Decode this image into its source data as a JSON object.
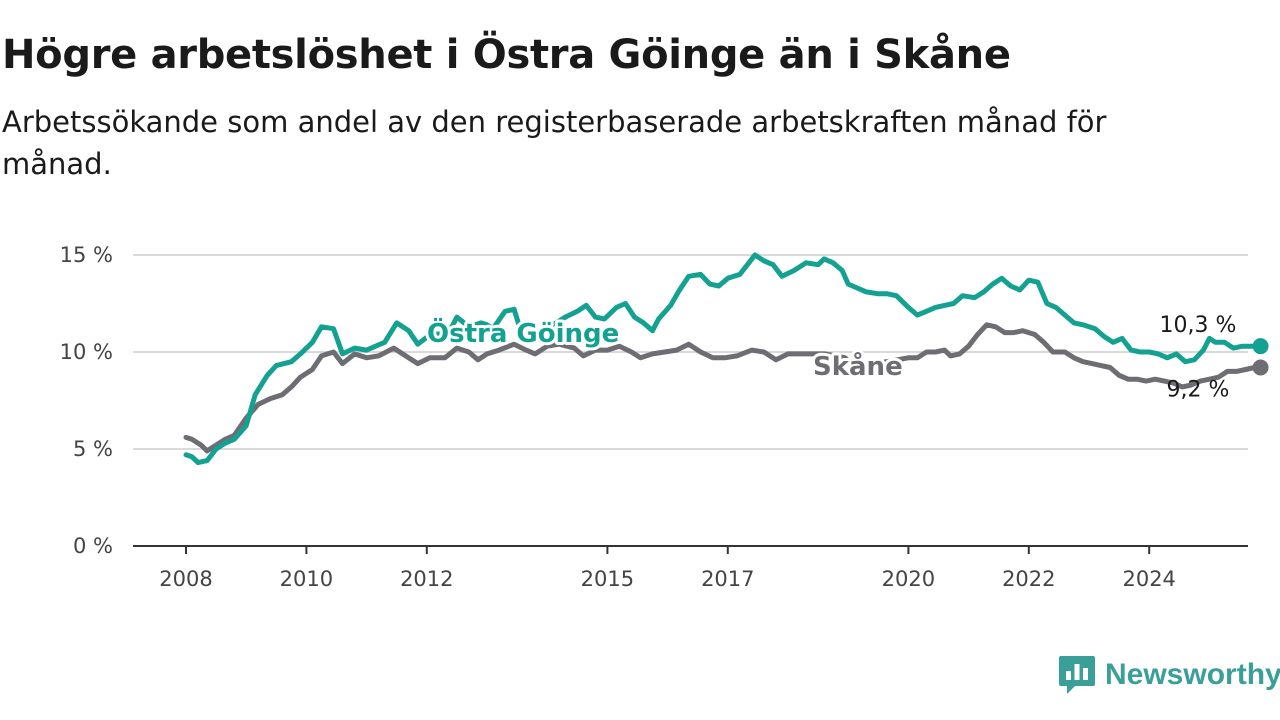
{
  "header": {
    "title": "Högre arbetslöshet i Östra Göinge än i Skåne",
    "subtitle": "Arbetssökande som andel av den registerbaserade arbetskraften månad för månad."
  },
  "brand": {
    "name": "Newsworthy",
    "logo_icon": "bar-chart-speech-bubble-icon"
  },
  "colors": {
    "ostra_goinge": "#13a191",
    "skane": "#6e6d73",
    "grid": "#d9d9d9",
    "axis": "#333333",
    "brand": "#3a9f98"
  },
  "chart_data": {
    "type": "line",
    "x_unit": "year",
    "xlim": [
      2008,
      2024.9
    ],
    "ylim": [
      0,
      15
    ],
    "y_ticks": [
      0,
      5,
      10,
      15
    ],
    "y_tick_labels": [
      "0 %",
      "5 %",
      "10 %",
      "15 %"
    ],
    "x_ticks": [
      2008,
      2010,
      2012,
      2015,
      2017,
      2020,
      2022,
      2024
    ],
    "x_tick_labels": [
      "2008",
      "2010",
      "2012",
      "2015",
      "2017",
      "2020",
      "2022",
      "2024"
    ],
    "grid": true,
    "series": [
      {
        "name": "Östra Göinge",
        "label": "Östra Göinge",
        "end_label": "10,3 %",
        "color": "#13a191",
        "points": [
          [
            2008.0,
            4.7
          ],
          [
            2008.1,
            4.6
          ],
          [
            2008.2,
            4.3
          ],
          [
            2008.35,
            4.4
          ],
          [
            2008.5,
            5.0
          ],
          [
            2008.65,
            5.3
          ],
          [
            2008.8,
            5.5
          ],
          [
            2009.0,
            6.2
          ],
          [
            2009.15,
            7.8
          ],
          [
            2009.35,
            8.8
          ],
          [
            2009.5,
            9.3
          ],
          [
            2009.75,
            9.5
          ],
          [
            2009.9,
            9.9
          ],
          [
            2010.1,
            10.5
          ],
          [
            2010.25,
            11.3
          ],
          [
            2010.45,
            11.2
          ],
          [
            2010.6,
            9.9
          ],
          [
            2010.8,
            10.2
          ],
          [
            2011.0,
            10.1
          ],
          [
            2011.3,
            10.5
          ],
          [
            2011.5,
            11.5
          ],
          [
            2011.7,
            11.1
          ],
          [
            2011.85,
            10.4
          ],
          [
            2012.1,
            11.0
          ],
          [
            2012.2,
            10.9
          ],
          [
            2012.4,
            11.2
          ],
          [
            2012.5,
            11.8
          ],
          [
            2012.7,
            11.3
          ],
          [
            2012.9,
            11.5
          ],
          [
            2013.0,
            11.4
          ],
          [
            2013.1,
            11.2
          ],
          [
            2013.3,
            12.1
          ],
          [
            2013.45,
            12.2
          ],
          [
            2013.55,
            11.2
          ],
          [
            2013.7,
            10.9
          ],
          [
            2013.85,
            10.8
          ],
          [
            2014.0,
            11.3
          ],
          [
            2014.15,
            11.5
          ],
          [
            2014.3,
            11.8
          ],
          [
            2014.5,
            12.1
          ],
          [
            2014.65,
            12.4
          ],
          [
            2014.8,
            11.8
          ],
          [
            2014.95,
            11.7
          ],
          [
            2015.15,
            12.3
          ],
          [
            2015.3,
            12.5
          ],
          [
            2015.45,
            11.8
          ],
          [
            2015.6,
            11.5
          ],
          [
            2015.75,
            11.1
          ],
          [
            2015.85,
            11.7
          ],
          [
            2016.05,
            12.4
          ],
          [
            2016.2,
            13.2
          ],
          [
            2016.35,
            13.9
          ],
          [
            2016.55,
            14.0
          ],
          [
            2016.7,
            13.5
          ],
          [
            2016.85,
            13.4
          ],
          [
            2017.0,
            13.8
          ],
          [
            2017.2,
            14.0
          ],
          [
            2017.35,
            14.6
          ],
          [
            2017.45,
            15.0
          ],
          [
            2017.6,
            14.7
          ],
          [
            2017.75,
            14.5
          ],
          [
            2017.9,
            13.9
          ],
          [
            2018.1,
            14.2
          ],
          [
            2018.3,
            14.6
          ],
          [
            2018.5,
            14.5
          ],
          [
            2018.6,
            14.8
          ],
          [
            2018.75,
            14.6
          ],
          [
            2018.9,
            14.2
          ],
          [
            2019.0,
            13.5
          ],
          [
            2019.15,
            13.3
          ],
          [
            2019.3,
            13.1
          ],
          [
            2019.5,
            13.0
          ],
          [
            2019.65,
            13.0
          ],
          [
            2019.8,
            12.9
          ],
          [
            2020.0,
            12.3
          ],
          [
            2020.15,
            11.9
          ],
          [
            2020.3,
            12.1
          ],
          [
            2020.45,
            12.3
          ],
          [
            2020.6,
            12.4
          ],
          [
            2020.75,
            12.5
          ],
          [
            2020.9,
            12.9
          ],
          [
            2021.1,
            12.8
          ],
          [
            2021.25,
            13.1
          ],
          [
            2021.4,
            13.5
          ],
          [
            2021.55,
            13.8
          ],
          [
            2021.7,
            13.4
          ],
          [
            2021.85,
            13.2
          ],
          [
            2022.0,
            13.7
          ],
          [
            2022.15,
            13.6
          ],
          [
            2022.3,
            12.5
          ],
          [
            2022.45,
            12.3
          ],
          [
            2022.6,
            11.9
          ],
          [
            2022.75,
            11.5
          ],
          [
            2022.9,
            11.4
          ],
          [
            2023.1,
            11.2
          ],
          [
            2023.25,
            10.8
          ],
          [
            2023.4,
            10.5
          ],
          [
            2023.55,
            10.7
          ],
          [
            2023.7,
            10.1
          ],
          [
            2023.85,
            10.0
          ],
          [
            2024.0,
            10.0
          ],
          [
            2024.15,
            9.9
          ],
          [
            2024.3,
            9.7
          ],
          [
            2024.45,
            9.9
          ],
          [
            2024.6,
            9.5
          ],
          [
            2024.75,
            9.6
          ],
          [
            2024.9,
            10.1
          ],
          [
            2025.0,
            10.7
          ],
          [
            2025.1,
            10.5
          ],
          [
            2025.25,
            10.5
          ],
          [
            2025.4,
            10.2
          ],
          [
            2025.55,
            10.3
          ],
          [
            2025.7,
            10.3
          ],
          [
            2025.85,
            10.3
          ]
        ]
      },
      {
        "name": "Skåne",
        "label": "Skåne",
        "end_label": "9,2 %",
        "color": "#6e6d73",
        "points": [
          [
            2008.0,
            5.6
          ],
          [
            2008.1,
            5.5
          ],
          [
            2008.25,
            5.2
          ],
          [
            2008.35,
            4.9
          ],
          [
            2008.5,
            5.2
          ],
          [
            2008.65,
            5.5
          ],
          [
            2008.8,
            5.7
          ],
          [
            2009.0,
            6.6
          ],
          [
            2009.2,
            7.3
          ],
          [
            2009.4,
            7.6
          ],
          [
            2009.6,
            7.8
          ],
          [
            2009.75,
            8.2
          ],
          [
            2009.9,
            8.7
          ],
          [
            2010.1,
            9.1
          ],
          [
            2010.25,
            9.8
          ],
          [
            2010.45,
            10.0
          ],
          [
            2010.6,
            9.4
          ],
          [
            2010.8,
            9.9
          ],
          [
            2011.0,
            9.7
          ],
          [
            2011.2,
            9.8
          ],
          [
            2011.45,
            10.2
          ],
          [
            2011.65,
            9.8
          ],
          [
            2011.85,
            9.4
          ],
          [
            2012.05,
            9.7
          ],
          [
            2012.3,
            9.7
          ],
          [
            2012.5,
            10.2
          ],
          [
            2012.7,
            10.0
          ],
          [
            2012.85,
            9.6
          ],
          [
            2013.0,
            9.9
          ],
          [
            2013.2,
            10.1
          ],
          [
            2013.45,
            10.4
          ],
          [
            2013.65,
            10.1
          ],
          [
            2013.8,
            9.9
          ],
          [
            2014.0,
            10.3
          ],
          [
            2014.2,
            10.4
          ],
          [
            2014.45,
            10.2
          ],
          [
            2014.6,
            9.8
          ],
          [
            2014.8,
            10.1
          ],
          [
            2015.0,
            10.1
          ],
          [
            2015.2,
            10.3
          ],
          [
            2015.4,
            10.0
          ],
          [
            2015.55,
            9.7
          ],
          [
            2015.75,
            9.9
          ],
          [
            2015.95,
            10.0
          ],
          [
            2016.15,
            10.1
          ],
          [
            2016.35,
            10.4
          ],
          [
            2016.55,
            10.0
          ],
          [
            2016.75,
            9.7
          ],
          [
            2016.95,
            9.7
          ],
          [
            2017.15,
            9.8
          ],
          [
            2017.4,
            10.1
          ],
          [
            2017.6,
            10.0
          ],
          [
            2017.8,
            9.6
          ],
          [
            2018.0,
            9.9
          ],
          [
            2018.2,
            9.9
          ],
          [
            2018.4,
            9.9
          ],
          [
            2018.6,
            9.9
          ],
          [
            2018.8,
            9.8
          ],
          [
            2018.95,
            9.7
          ],
          [
            2019.1,
            9.2
          ],
          [
            2020.0,
            9.7
          ],
          [
            2020.15,
            9.7
          ],
          [
            2020.3,
            10.0
          ],
          [
            2020.45,
            10.0
          ],
          [
            2020.6,
            10.1
          ],
          [
            2020.7,
            9.8
          ],
          [
            2020.85,
            9.9
          ],
          [
            2021.0,
            10.3
          ],
          [
            2021.15,
            10.9
          ],
          [
            2021.3,
            11.4
          ],
          [
            2021.45,
            11.3
          ],
          [
            2021.6,
            11.0
          ],
          [
            2021.75,
            11.0
          ],
          [
            2021.9,
            11.1
          ],
          [
            2022.1,
            10.9
          ],
          [
            2022.25,
            10.5
          ],
          [
            2022.4,
            10.0
          ],
          [
            2022.6,
            10.0
          ],
          [
            2022.75,
            9.7
          ],
          [
            2022.9,
            9.5
          ],
          [
            2023.05,
            9.4
          ],
          [
            2023.2,
            9.3
          ],
          [
            2023.35,
            9.2
          ],
          [
            2023.5,
            8.8
          ],
          [
            2023.65,
            8.6
          ],
          [
            2023.8,
            8.6
          ],
          [
            2023.95,
            8.5
          ],
          [
            2024.1,
            8.6
          ],
          [
            2024.25,
            8.5
          ],
          [
            2024.4,
            8.4
          ],
          [
            2024.55,
            8.2
          ],
          [
            2024.7,
            8.3
          ],
          [
            2024.85,
            8.5
          ],
          [
            2025.0,
            8.6
          ],
          [
            2025.15,
            8.7
          ],
          [
            2025.3,
            9.0
          ],
          [
            2025.45,
            9.0
          ],
          [
            2025.6,
            9.1
          ],
          [
            2025.75,
            9.2
          ],
          [
            2025.85,
            9.2
          ]
        ]
      }
    ]
  }
}
